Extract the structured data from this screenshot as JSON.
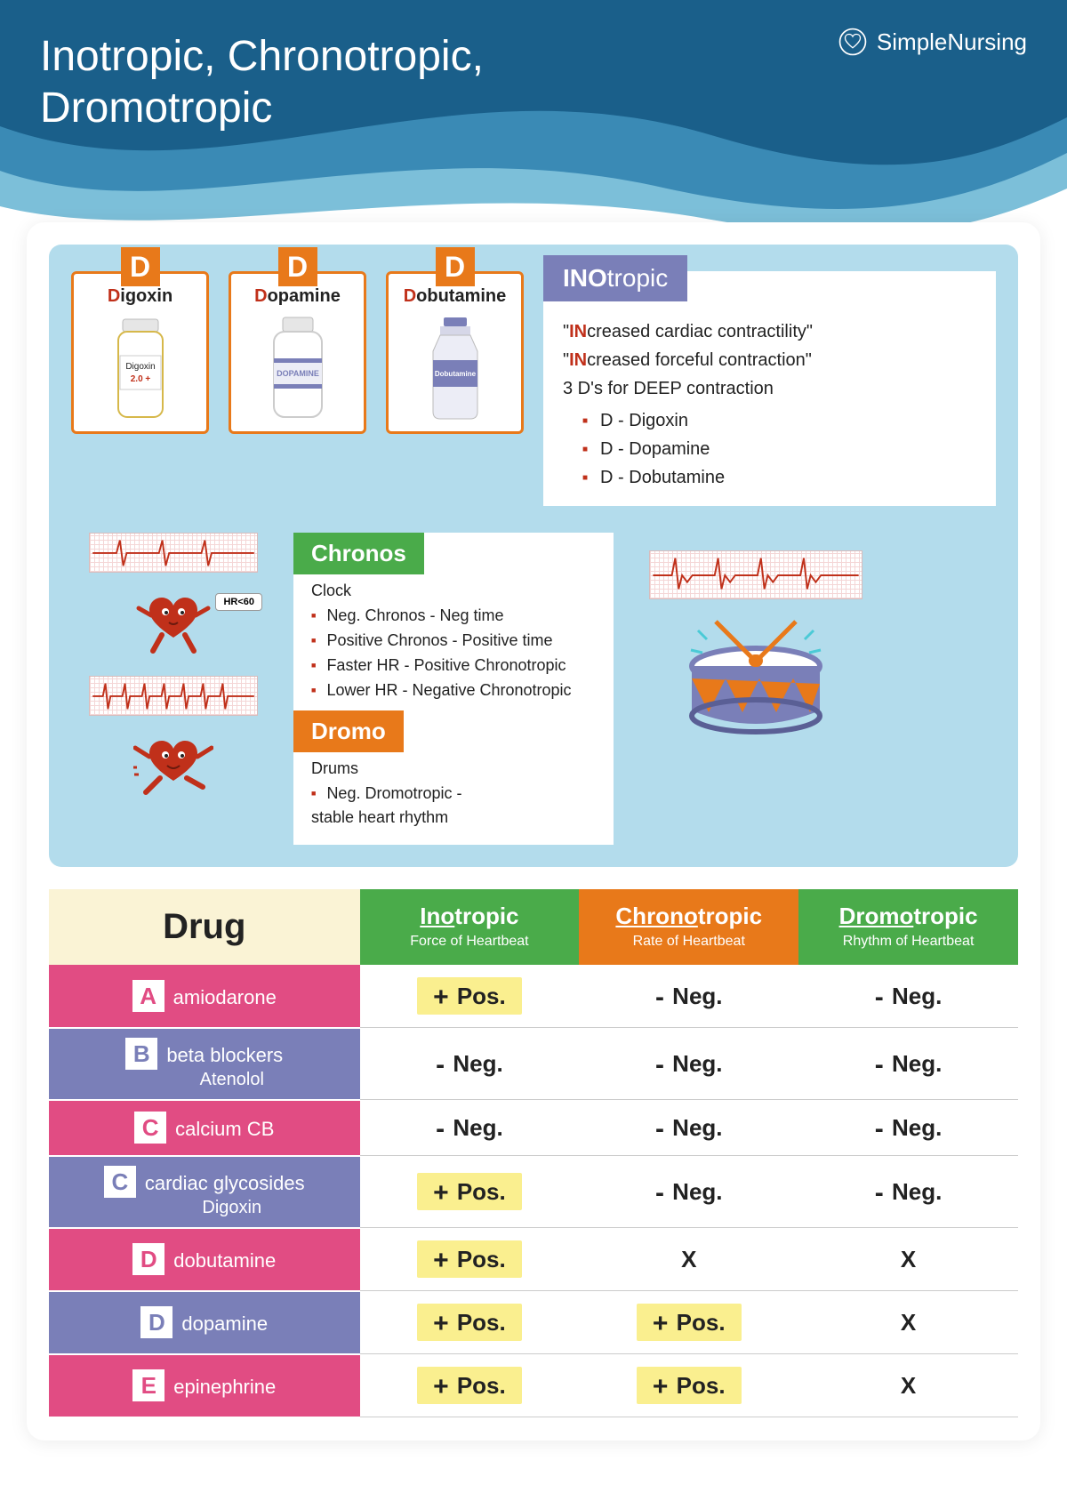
{
  "header": {
    "title_line1": "Inotropic, Chronotropic,",
    "title_line2": "Dromotropic",
    "brand": "SimpleNursing",
    "bg_color": "#1a5f8a",
    "wave_mid": "#3a8ab5",
    "wave_light": "#7cbfd9"
  },
  "d_cards": [
    {
      "letter": "D",
      "first": "D",
      "rest": "igoxin",
      "bottle_label": "Digoxin",
      "bottle_sub": "2.0 +",
      "accent": "#e8c766",
      "accent2": "#c0301a"
    },
    {
      "letter": "D",
      "first": "D",
      "rest": "opamine",
      "bottle_label": "DOPAMINE",
      "accent": "#7a7fb8"
    },
    {
      "letter": "D",
      "first": "D",
      "rest": "obutamine",
      "bottle_label": "Dobutamine",
      "accent": "#7a7fb8"
    }
  ],
  "ino": {
    "header_bold": "INO",
    "header_light": "tropic",
    "line1_em": "IN",
    "line1_rest": "creased cardiac contractility\"",
    "line2_em": "IN",
    "line2_rest": "creased forceful contraction\"",
    "line3": "3 D's for DEEP contraction",
    "list": [
      "D - Digoxin",
      "D - Dopamine",
      "D - Dobutamine"
    ]
  },
  "hr_label": "HR<60",
  "chronos": {
    "header": "Chronos",
    "subtitle": "Clock",
    "items": [
      "Neg. Chronos - Neg time",
      "Positive Chronos - Positive time",
      "Faster HR  - Positive Chronotropic",
      "Lower HR - Negative Chronotropic"
    ]
  },
  "dromo": {
    "header": "Dromo",
    "subtitle": "Drums",
    "items": [
      "Neg. Dromotropic - stable heart rhythm"
    ]
  },
  "table": {
    "header": "Drug",
    "columns": [
      {
        "title_u": "Ino",
        "title_rest": "tropic",
        "sub": "Force of Heartbeat",
        "color": "green"
      },
      {
        "title_u": "Chrono",
        "title_rest": "tropic",
        "sub": "Rate of Heartbeat",
        "color": "orange"
      },
      {
        "title_u": "Dromo",
        "title_rest": "tropic",
        "sub": "Rhythm of Heartbeat",
        "color": "green"
      }
    ],
    "rows": [
      {
        "letter": "A",
        "name": "amiodarone",
        "color": "pink",
        "cells": [
          "pos",
          "neg",
          "neg"
        ]
      },
      {
        "letter": "B",
        "name": "beta blockers",
        "sub": "Atenolol",
        "color": "purple",
        "cells": [
          "neg",
          "neg",
          "neg"
        ]
      },
      {
        "letter": "C",
        "name": "calcium CB",
        "color": "pink",
        "cells": [
          "neg",
          "neg",
          "neg"
        ]
      },
      {
        "letter": "C",
        "name": "cardiac glycosides",
        "sub": "Digoxin",
        "color": "purple",
        "cells": [
          "pos",
          "neg",
          "neg"
        ]
      },
      {
        "letter": "D",
        "name": "dobutamine",
        "color": "pink",
        "cells": [
          "pos",
          "x",
          "x"
        ]
      },
      {
        "letter": "D",
        "name": "dopamine",
        "color": "purple",
        "cells": [
          "pos",
          "pos",
          "x"
        ]
      },
      {
        "letter": "E",
        "name": "epinephrine",
        "color": "pink",
        "cells": [
          "pos",
          "pos",
          "x"
        ]
      }
    ],
    "labels": {
      "pos": "Pos.",
      "neg": "Neg.",
      "x": "X"
    }
  },
  "colors": {
    "orange": "#e8791a",
    "green": "#4aab4a",
    "pink": "#e14c83",
    "purple": "#7a7fb8",
    "pos_highlight": "#faef8f",
    "drug_header_bg": "#faf3d5",
    "blue_panel": "#b3dcec",
    "red": "#c0301a"
  }
}
